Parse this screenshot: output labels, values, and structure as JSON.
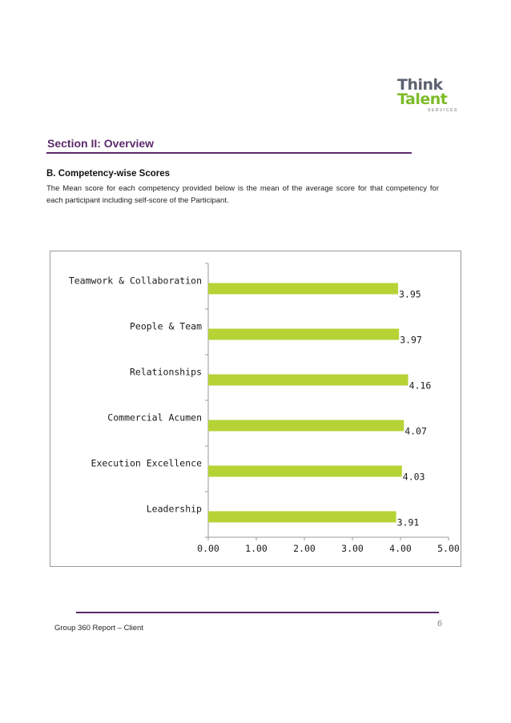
{
  "logo": {
    "line1": "Think",
    "line2": "Talent",
    "tagline": "SERVICES",
    "colors": {
      "think": "#5b6270",
      "talent": "#7dbb2a"
    }
  },
  "section": {
    "title": "Section II: Overview"
  },
  "competency": {
    "heading": "B. Competency-wise Scores",
    "description": "The Mean score for each competency provided below is the mean of the average score for that competency for each participant including self-score of the Participant."
  },
  "chart_data": {
    "type": "bar",
    "orientation": "horizontal",
    "categories": [
      "Teamwork & Collaboration",
      "People & Team",
      "Relationships",
      "Commercial Acumen",
      "Execution Excellence",
      "Leadership"
    ],
    "values": [
      3.95,
      3.97,
      4.16,
      4.07,
      4.03,
      3.91
    ],
    "value_labels": [
      "3.95",
      "3.97",
      "4.16",
      "4.07",
      "4.03",
      "3.91"
    ],
    "xlim": [
      0,
      5
    ],
    "xticks": [
      "0.00",
      "1.00",
      "2.00",
      "3.00",
      "4.00",
      "5.00"
    ],
    "grid": false,
    "legend": "none",
    "bar_color": "#b5d335"
  },
  "footer": {
    "report_title": "Group 360 Report – Client",
    "page_number": "6"
  },
  "colors": {
    "accent": "#5c2a6b"
  }
}
